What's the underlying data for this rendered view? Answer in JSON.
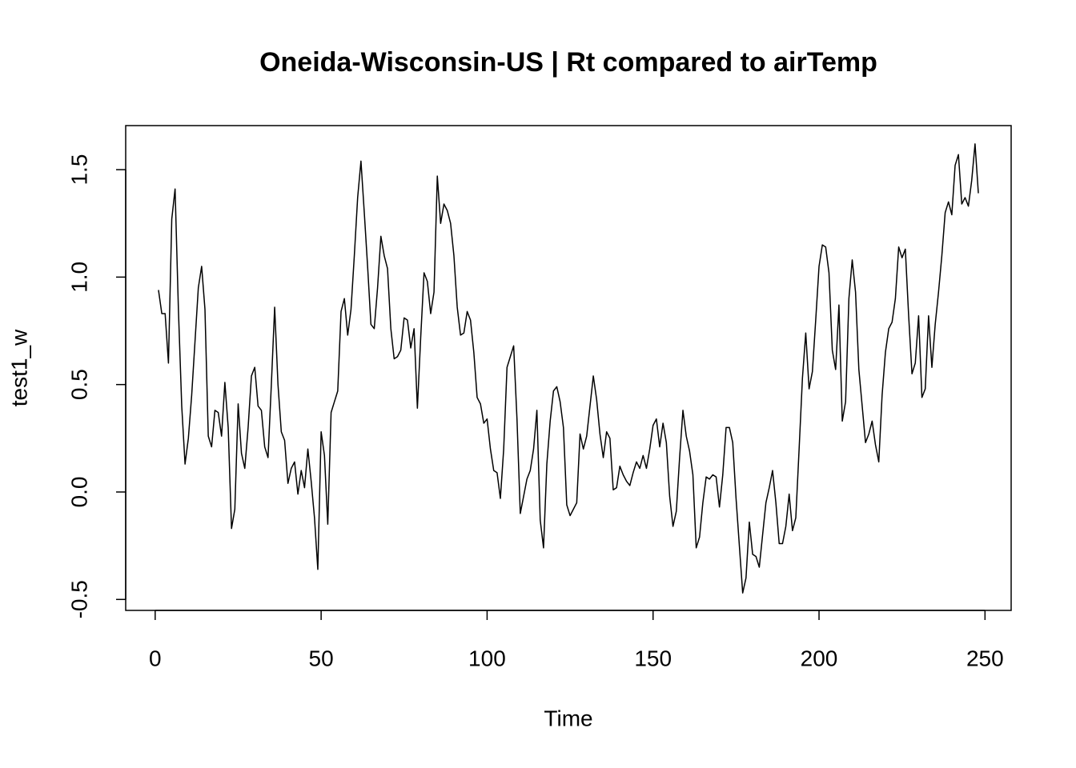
{
  "chart_data": {
    "type": "line",
    "title": "Oneida-Wisconsin-US | Rt compared to airTemp",
    "xlabel": "Time",
    "ylabel": "test1_w",
    "color": "#000000",
    "x": [
      1,
      2,
      3,
      4,
      5,
      6,
      7,
      8,
      9,
      10,
      11,
      12,
      13,
      14,
      15,
      16,
      17,
      18,
      19,
      20,
      21,
      22,
      23,
      24,
      25,
      26,
      27,
      28,
      29,
      30,
      31,
      32,
      33,
      34,
      35,
      36,
      37,
      38,
      39,
      40,
      41,
      42,
      43,
      44,
      45,
      46,
      47,
      48,
      49,
      50,
      51,
      52,
      53,
      54,
      55,
      56,
      57,
      58,
      59,
      60,
      61,
      62,
      63,
      64,
      65,
      66,
      67,
      68,
      69,
      70,
      71,
      72,
      73,
      74,
      75,
      76,
      77,
      78,
      79,
      80,
      81,
      82,
      83,
      84,
      85,
      86,
      87,
      88,
      89,
      90,
      91,
      92,
      93,
      94,
      95,
      96,
      97,
      98,
      99,
      100,
      101,
      102,
      103,
      104,
      105,
      106,
      107,
      108,
      109,
      110,
      111,
      112,
      113,
      114,
      115,
      116,
      117,
      118,
      119,
      120,
      121,
      122,
      123,
      124,
      125,
      126,
      127,
      128,
      129,
      130,
      131,
      132,
      133,
      134,
      135,
      136,
      137,
      138,
      139,
      140,
      141,
      142,
      143,
      144,
      145,
      146,
      147,
      148,
      149,
      150,
      151,
      152,
      153,
      154,
      155,
      156,
      157,
      158,
      159,
      160,
      161,
      162,
      163,
      164,
      165,
      166,
      167,
      168,
      169,
      170,
      171,
      172,
      173,
      174,
      175,
      176,
      177,
      178,
      179,
      180,
      181,
      182,
      183,
      184,
      185,
      186,
      187,
      188,
      189,
      190,
      191,
      192,
      193,
      194,
      195,
      196,
      197,
      198,
      199,
      200,
      201,
      202,
      203,
      204,
      205,
      206,
      207,
      208,
      209,
      210,
      211,
      212,
      213,
      214,
      215,
      216,
      217,
      218,
      219,
      220,
      221,
      222,
      223,
      224,
      225,
      226,
      227,
      228,
      229,
      230,
      231,
      232,
      233,
      234,
      235,
      236,
      237,
      238,
      239,
      240,
      241,
      242,
      243,
      244,
      245,
      246,
      247,
      248
    ],
    "values": [
      0.94,
      0.83,
      0.83,
      0.6,
      1.27,
      1.41,
      0.85,
      0.4,
      0.13,
      0.25,
      0.45,
      0.7,
      0.95,
      1.05,
      0.85,
      0.26,
      0.21,
      0.38,
      0.37,
      0.26,
      0.51,
      0.3,
      -0.17,
      -0.08,
      0.41,
      0.18,
      0.11,
      0.3,
      0.54,
      0.58,
      0.4,
      0.38,
      0.21,
      0.16,
      0.5,
      0.86,
      0.5,
      0.28,
      0.24,
      0.04,
      0.11,
      0.14,
      -0.01,
      0.1,
      0.02,
      0.2,
      0.05,
      -0.12,
      -0.36,
      0.28,
      0.17,
      -0.15,
      0.37,
      0.42,
      0.47,
      0.84,
      0.9,
      0.73,
      0.85,
      1.1,
      1.37,
      1.54,
      1.3,
      1.05,
      0.78,
      0.76,
      0.95,
      1.19,
      1.1,
      1.04,
      0.76,
      0.62,
      0.63,
      0.66,
      0.81,
      0.8,
      0.67,
      0.76,
      0.39,
      0.72,
      1.02,
      0.98,
      0.83,
      0.93,
      1.47,
      1.25,
      1.34,
      1.31,
      1.25,
      1.1,
      0.86,
      0.73,
      0.74,
      0.84,
      0.8,
      0.65,
      0.44,
      0.41,
      0.32,
      0.34,
      0.2,
      0.1,
      0.09,
      -0.03,
      0.2,
      0.58,
      0.63,
      0.68,
      0.34,
      -0.1,
      -0.02,
      0.06,
      0.1,
      0.2,
      0.38,
      -0.13,
      -0.26,
      0.13,
      0.33,
      0.47,
      0.49,
      0.42,
      0.3,
      -0.06,
      -0.11,
      -0.08,
      -0.05,
      0.27,
      0.2,
      0.26,
      0.4,
      0.54,
      0.43,
      0.27,
      0.16,
      0.28,
      0.25,
      0.01,
      0.02,
      0.12,
      0.08,
      0.05,
      0.03,
      0.09,
      0.14,
      0.11,
      0.17,
      0.11,
      0.2,
      0.31,
      0.34,
      0.21,
      0.32,
      0.23,
      -0.02,
      -0.16,
      -0.09,
      0.16,
      0.38,
      0.26,
      0.19,
      0.08,
      -0.26,
      -0.21,
      -0.05,
      0.07,
      0.06,
      0.08,
      0.07,
      -0.07,
      0.08,
      0.3,
      0.3,
      0.23,
      -0.03,
      -0.25,
      -0.47,
      -0.4,
      -0.14,
      -0.29,
      -0.3,
      -0.35,
      -0.2,
      -0.05,
      0.02,
      0.1,
      -0.05,
      -0.24,
      -0.24,
      -0.16,
      -0.01,
      -0.18,
      -0.12,
      0.2,
      0.53,
      0.74,
      0.48,
      0.56,
      0.8,
      1.05,
      1.15,
      1.14,
      1.02,
      0.66,
      0.57,
      0.87,
      0.33,
      0.42,
      0.9,
      1.08,
      0.93,
      0.57,
      0.4,
      0.23,
      0.27,
      0.33,
      0.22,
      0.14,
      0.45,
      0.65,
      0.76,
      0.79,
      0.9,
      1.14,
      1.09,
      1.13,
      0.82,
      0.55,
      0.6,
      0.82,
      0.44,
      0.48,
      0.82,
      0.58,
      0.78,
      0.93,
      1.1,
      1.3,
      1.35,
      1.29,
      1.52,
      1.57,
      1.34,
      1.37,
      1.33,
      1.45,
      1.62,
      1.39
    ],
    "xlim": [
      -8.88,
      257.88
    ],
    "xticks": [
      0,
      50,
      100,
      150,
      200,
      250
    ],
    "ylim": [
      -0.551,
      1.705
    ],
    "yticks": [
      -0.5,
      {
        "value": 0,
        "label": "0.0"
      },
      0.5,
      {
        "value": 1,
        "label": "1.0"
      },
      1.5
    ]
  }
}
